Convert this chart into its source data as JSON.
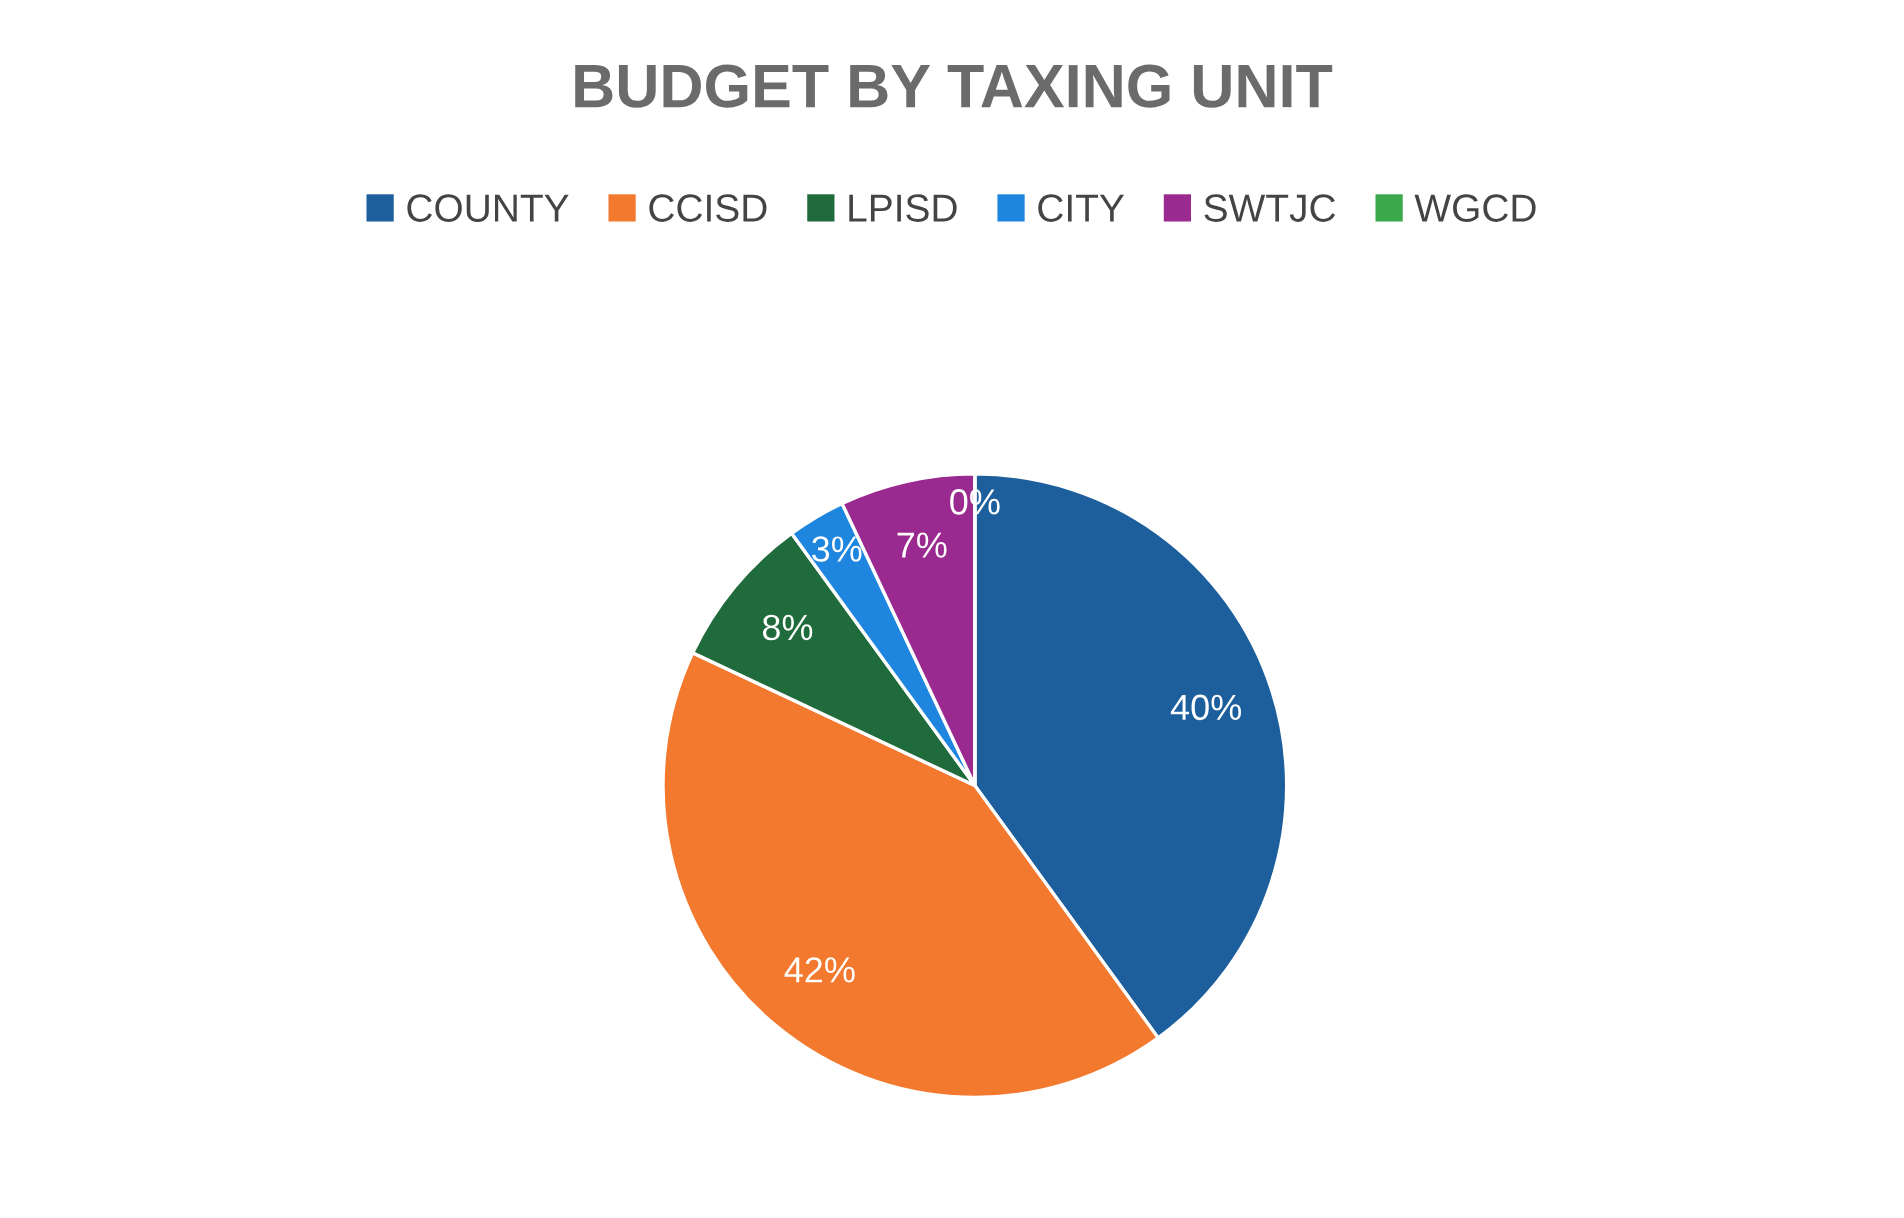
{
  "chart_data": {
    "type": "pie",
    "title": "BUDGET BY TAXING UNIT",
    "categories": [
      "COUNTY",
      "CCISD",
      "LPISD",
      "CITY",
      "SWTJC",
      "WGCD"
    ],
    "values": [
      40,
      42,
      8,
      3,
      7,
      0
    ],
    "value_labels": [
      "40%",
      "42%",
      "8%",
      "3%",
      "7%",
      "0%"
    ],
    "colors": [
      "#1d5e9c",
      "#f2792e",
      "#1f6b3b",
      "#1f86e0",
      "#9a2a8f",
      "#3aa84b"
    ],
    "legend": "top"
  }
}
